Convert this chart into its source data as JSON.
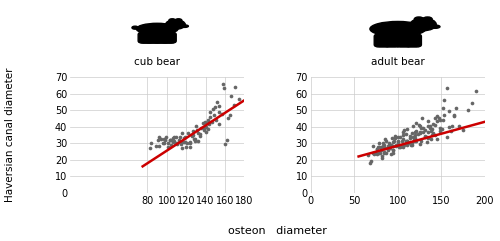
{
  "cub_x": [
    82,
    85,
    88,
    90,
    92,
    93,
    95,
    96,
    97,
    98,
    99,
    100,
    100,
    101,
    102,
    103,
    104,
    105,
    105,
    106,
    107,
    108,
    109,
    110,
    110,
    111,
    112,
    113,
    114,
    115,
    115,
    116,
    117,
    118,
    119,
    120,
    120,
    121,
    122,
    123,
    124,
    125,
    125,
    126,
    127,
    128,
    129,
    130,
    130,
    131,
    132,
    133,
    134,
    135,
    135,
    136,
    137,
    138,
    139,
    140,
    140,
    141,
    142,
    143,
    144,
    145,
    146,
    147,
    148,
    149,
    150,
    151,
    152,
    153,
    154,
    155,
    156,
    157,
    158,
    160,
    162,
    163,
    165,
    167,
    170,
    172,
    175
  ],
  "cub_y": [
    28,
    30,
    28,
    32,
    29,
    35,
    31,
    33,
    30,
    29,
    34,
    28,
    32,
    30,
    31,
    33,
    29,
    31,
    30,
    33,
    35,
    32,
    30,
    31,
    34,
    29,
    33,
    35,
    30,
    28,
    32,
    35,
    31,
    34,
    30,
    29,
    33,
    36,
    30,
    32,
    31,
    34,
    29,
    38,
    35,
    32,
    33,
    37,
    31,
    40,
    36,
    33,
    38,
    34,
    35,
    42,
    37,
    39,
    36,
    44,
    40,
    38,
    45,
    42,
    43,
    46,
    48,
    44,
    50,
    52,
    47,
    45,
    55,
    42,
    54,
    50,
    48,
    65,
    63,
    30,
    33,
    44,
    47,
    58,
    52,
    64,
    56
  ],
  "cub_line_x": [
    75,
    180
  ],
  "cub_line_y": [
    16,
    56
  ],
  "adult_x": [
    65,
    67,
    70,
    72,
    73,
    75,
    76,
    77,
    78,
    79,
    80,
    80,
    81,
    82,
    83,
    84,
    85,
    85,
    86,
    87,
    88,
    89,
    90,
    90,
    91,
    92,
    93,
    94,
    95,
    95,
    96,
    97,
    98,
    99,
    100,
    100,
    101,
    102,
    103,
    104,
    105,
    105,
    106,
    107,
    108,
    109,
    110,
    110,
    111,
    112,
    113,
    114,
    115,
    115,
    116,
    117,
    118,
    119,
    120,
    120,
    121,
    122,
    123,
    124,
    125,
    126,
    127,
    128,
    129,
    130,
    131,
    132,
    133,
    134,
    135,
    136,
    137,
    138,
    139,
    140,
    141,
    142,
    143,
    144,
    145,
    146,
    147,
    148,
    149,
    150,
    151,
    152,
    153,
    154,
    155,
    156,
    157,
    158,
    160,
    162,
    163,
    165,
    167,
    170,
    175,
    180,
    185,
    190,
    70,
    75,
    80,
    85,
    90,
    95,
    100,
    105,
    110,
    115,
    120,
    125,
    130,
    135,
    140,
    145,
    150,
    80,
    85,
    90,
    95,
    100,
    105,
    110,
    115,
    120,
    125,
    130,
    135,
    140,
    75,
    80,
    85,
    90,
    95,
    100,
    105,
    110,
    115,
    120,
    125
  ],
  "adult_y": [
    22,
    18,
    25,
    24,
    28,
    26,
    22,
    27,
    30,
    25,
    24,
    28,
    22,
    30,
    26,
    28,
    24,
    32,
    26,
    30,
    25,
    28,
    31,
    27,
    29,
    24,
    33,
    28,
    30,
    26,
    32,
    28,
    35,
    30,
    27,
    34,
    31,
    29,
    33,
    28,
    36,
    30,
    34,
    29,
    37,
    32,
    35,
    28,
    30,
    38,
    33,
    31,
    36,
    29,
    40,
    35,
    33,
    38,
    34,
    32,
    42,
    37,
    35,
    40,
    36,
    42,
    38,
    44,
    40,
    36,
    38,
    34,
    40,
    42,
    36,
    38,
    40,
    34,
    36,
    42,
    38,
    44,
    35,
    40,
    45,
    42,
    38,
    46,
    40,
    44,
    50,
    47,
    45,
    56,
    62,
    35,
    40,
    50,
    38,
    42,
    48,
    45,
    52,
    42,
    38,
    50,
    55,
    60,
    20,
    23,
    26,
    24,
    27,
    25,
    29,
    27,
    30,
    28,
    32,
    30,
    33,
    31,
    35,
    33,
    37,
    22,
    25,
    28,
    26,
    30,
    28,
    32,
    30,
    34,
    32,
    35,
    33,
    36,
    25,
    27,
    30,
    28,
    32,
    30,
    33,
    31,
    34,
    32,
    35
  ],
  "adult_line_x": [
    55,
    200
  ],
  "adult_line_y": [
    22,
    43
  ],
  "dot_color": "#666666",
  "line_color": "#cc0000",
  "ylabel": "Haversian canal diameter",
  "xlabel": "osteon   diameter",
  "cub_title": "cub bear",
  "adult_title": "adult bear",
  "xlim_cub": [
    0,
    180
  ],
  "ylim_cub": [
    0,
    70
  ],
  "xlim_adult": [
    0,
    200
  ],
  "ylim_adult": [
    0,
    70
  ],
  "yticks": [
    0,
    10,
    20,
    30,
    40,
    50,
    60,
    70
  ],
  "xticks_cub": [
    80,
    100,
    120,
    140,
    160,
    180
  ],
  "xticks_adult": [
    0,
    50,
    100,
    150,
    200
  ]
}
